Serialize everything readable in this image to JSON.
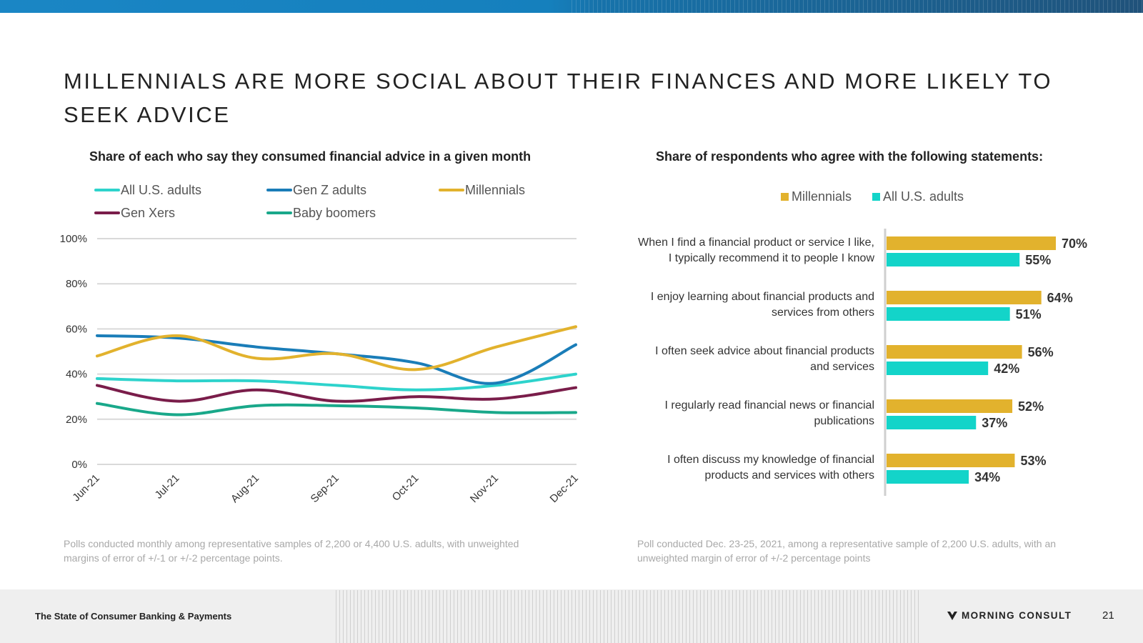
{
  "slide": {
    "title": "MILLENNIALS ARE MORE SOCIAL ABOUT THEIR FINANCES AND MORE LIKELY TO SEEK ADVICE",
    "footer_left": "The State of Consumer Banking & Payments",
    "logo_text": "MORNING CONSULT",
    "page_number": "21",
    "accent_top": "#1a86c5"
  },
  "left_note": "Polls conducted monthly among representative samples of 2,200 or 4,400 U.S. adults, with unweighted margins of error of +/-1 or +/-2 percentage points.",
  "right_note": "Poll conducted Dec. 23-25, 2021, among a representative sample of 2,200 U.S. adults, with an unweighted margin of error of +/-2 percentage points",
  "chart_data": [
    {
      "type": "line",
      "title": "Share of each who say they consumed financial advice in a given month",
      "x": [
        "Jun-21",
        "Jul-21",
        "Aug-21",
        "Sep-21",
        "Oct-21",
        "Nov-21",
        "Dec-21"
      ],
      "ylim": [
        0,
        100
      ],
      "yticks": [
        "0%",
        "20%",
        "40%",
        "60%",
        "80%",
        "100%"
      ],
      "grid": true,
      "legend_position": "top",
      "series": [
        {
          "name": "All U.S. adults",
          "color": "#2ed3cc",
          "values": [
            38,
            37,
            37,
            35,
            33,
            35,
            40
          ]
        },
        {
          "name": "Gen Z adults",
          "color": "#1a7db8",
          "values": [
            57,
            56,
            52,
            49,
            45,
            36,
            53
          ]
        },
        {
          "name": "Millennials",
          "color": "#e2b22d",
          "values": [
            48,
            57,
            47,
            49,
            42,
            52,
            61
          ]
        },
        {
          "name": "Gen Xers",
          "color": "#7a1d4a",
          "values": [
            35,
            28,
            33,
            28,
            30,
            29,
            34
          ]
        },
        {
          "name": "Baby boomers",
          "color": "#19a88a",
          "values": [
            27,
            22,
            26,
            26,
            25,
            23,
            23
          ]
        }
      ]
    },
    {
      "type": "bar",
      "orientation": "horizontal",
      "title": "Share of respondents who agree with the following statements:",
      "legend_position": "top",
      "categories": [
        [
          "When I find a financial product or service I like,",
          "I typically recommend it to people I know"
        ],
        [
          "I enjoy learning about financial products and",
          "services from others"
        ],
        [
          "I often seek advice about financial products",
          "and services"
        ],
        [
          "I regularly read financial news or financial",
          "publications"
        ],
        [
          "I often discuss my knowledge of financial",
          "products and services with others"
        ]
      ],
      "series": [
        {
          "name": "Millennials",
          "color": "#e2b22d",
          "values": [
            70,
            64,
            56,
            52,
            53
          ],
          "labels": [
            "70%",
            "64%",
            "56%",
            "52%",
            "53%"
          ]
        },
        {
          "name": "All U.S. adults",
          "color": "#13d4c9",
          "values": [
            55,
            51,
            42,
            37,
            34
          ],
          "labels": [
            "55%",
            "51%",
            "42%",
            "37%",
            "34%"
          ]
        }
      ]
    }
  ]
}
